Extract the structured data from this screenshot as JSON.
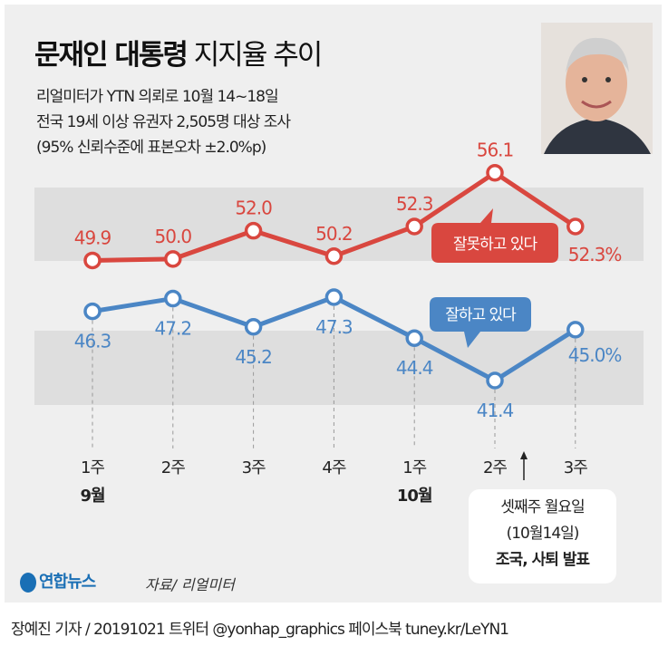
{
  "header": {
    "title_bold": "문재인 대통령",
    "title_light": "지지율 추이",
    "subtitle_lines": [
      "리얼미터가 YTN 의뢰로 10월 14~18일",
      "전국 19세 이상 유권자 2,505명 대상 조사",
      "(95% 신뢰수준에 표본오차 ±2.0%p)"
    ]
  },
  "chart_data": {
    "type": "line",
    "categories": [
      "1주",
      "2주",
      "3주",
      "4주",
      "1주",
      "2주",
      "3주"
    ],
    "month_labels": [
      {
        "index": 0,
        "label": "9월"
      },
      {
        "index": 4,
        "label": "10월"
      }
    ],
    "series": [
      {
        "name": "잘못하고 있다",
        "color": "#d9473f",
        "values": [
          49.9,
          50.0,
          52.0,
          50.2,
          52.3,
          56.1,
          52.3
        ],
        "labels": [
          "49.9",
          "50.0",
          "52.0",
          "50.2",
          "52.3",
          "56.1",
          "52.3%"
        ]
      },
      {
        "name": "잘하고 있다",
        "color": "#4b86c5",
        "values": [
          46.3,
          47.2,
          45.2,
          47.3,
          44.4,
          41.4,
          45.0
        ],
        "labels": [
          "46.3",
          "47.2",
          "45.2",
          "47.3",
          "44.4",
          "41.4",
          "45.0%"
        ]
      }
    ]
  },
  "annotation": {
    "line1": "셋째주 월요일",
    "line2": "(10월14일)",
    "line3": "조국, 사퇴 발표"
  },
  "source": "자료/ 리얼미터",
  "logo": "연합뉴스",
  "footer": "장예진 기자 / 20191021  트위터 @yonhap_graphics  페이스북 tuney.kr/LeYN1"
}
